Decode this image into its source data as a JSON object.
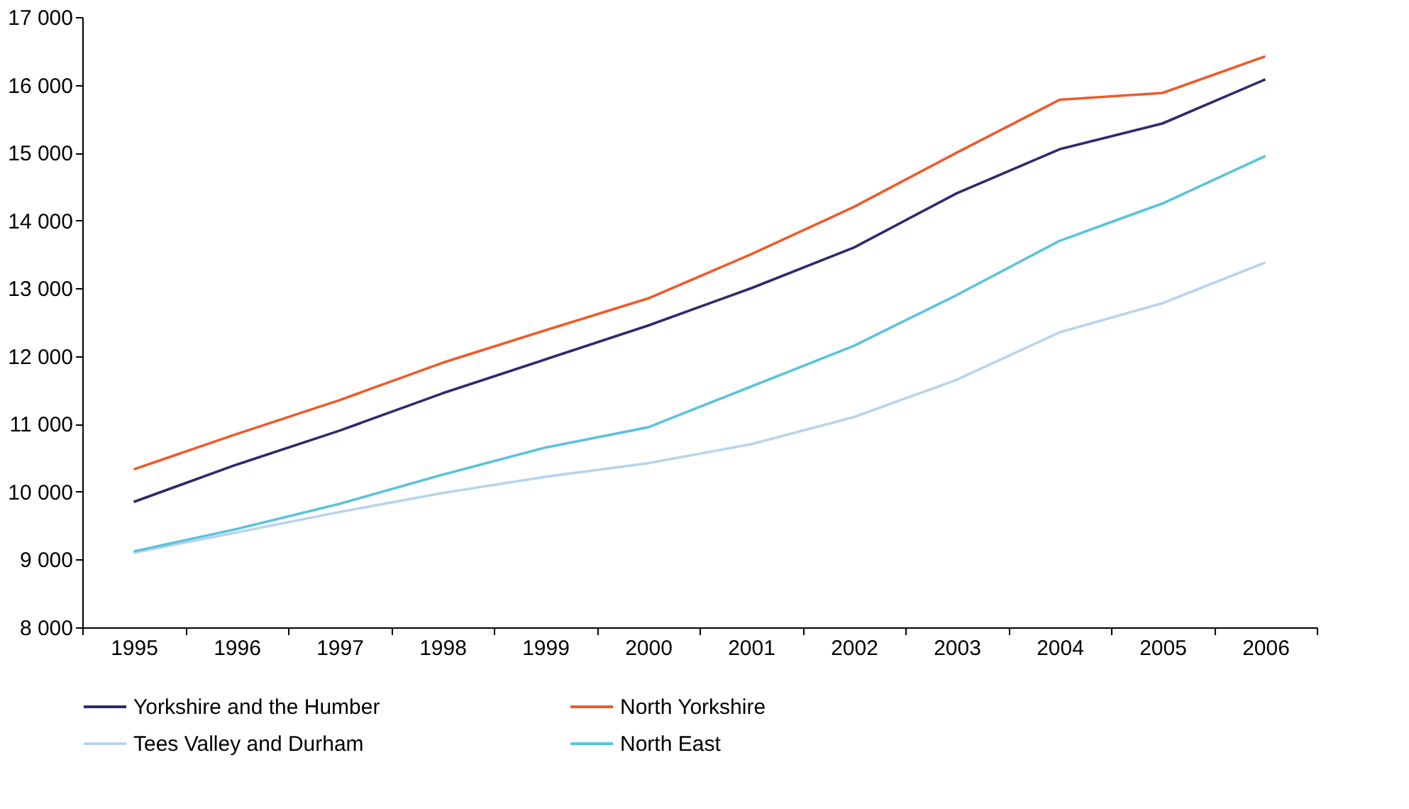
{
  "chart_data": {
    "type": "line",
    "categories": [
      "1995",
      "1996",
      "1997",
      "1998",
      "1999",
      "2000",
      "2001",
      "2002",
      "2003",
      "2004",
      "2005",
      "2006"
    ],
    "series": [
      {
        "name": "Yorkshire and the Humber",
        "color": "#2e2a6e",
        "values": [
          9850,
          10400,
          10900,
          11450,
          11950,
          12450,
          13000,
          13600,
          14400,
          15050,
          15430,
          16080
        ]
      },
      {
        "name": "North Yorkshire",
        "color": "#f05a28",
        "values": [
          10330,
          10850,
          11350,
          11900,
          12380,
          12850,
          13500,
          14200,
          15000,
          15780,
          15880,
          16420
        ]
      },
      {
        "name": "Tees Valley and Durham",
        "color": "#b8d4ee",
        "values": [
          9100,
          9400,
          9700,
          9980,
          10220,
          10420,
          10700,
          11100,
          11650,
          12350,
          12780,
          13380
        ]
      },
      {
        "name": "North East",
        "color": "#5bc3dc",
        "values": [
          9120,
          9450,
          9820,
          10250,
          10650,
          10950,
          11550,
          12150,
          12900,
          13700,
          14250,
          14950
        ]
      }
    ],
    "ylim": [
      8000,
      17000
    ],
    "yticks": [
      {
        "value": 8000,
        "label": "8 000"
      },
      {
        "value": 9000,
        "label": "9 000"
      },
      {
        "value": 10000,
        "label": "10 000"
      },
      {
        "value": 11000,
        "label": "11 000"
      },
      {
        "value": 12000,
        "label": "12 000"
      },
      {
        "value": 13000,
        "label": "13 000"
      },
      {
        "value": 14000,
        "label": "14 000"
      },
      {
        "value": 15000,
        "label": "15 000"
      },
      {
        "value": 16000,
        "label": "16 000"
      },
      {
        "value": 17000,
        "label": "17 000"
      }
    ],
    "grid": false,
    "legend": "bottom",
    "marker": "none",
    "line_style": "solid"
  }
}
